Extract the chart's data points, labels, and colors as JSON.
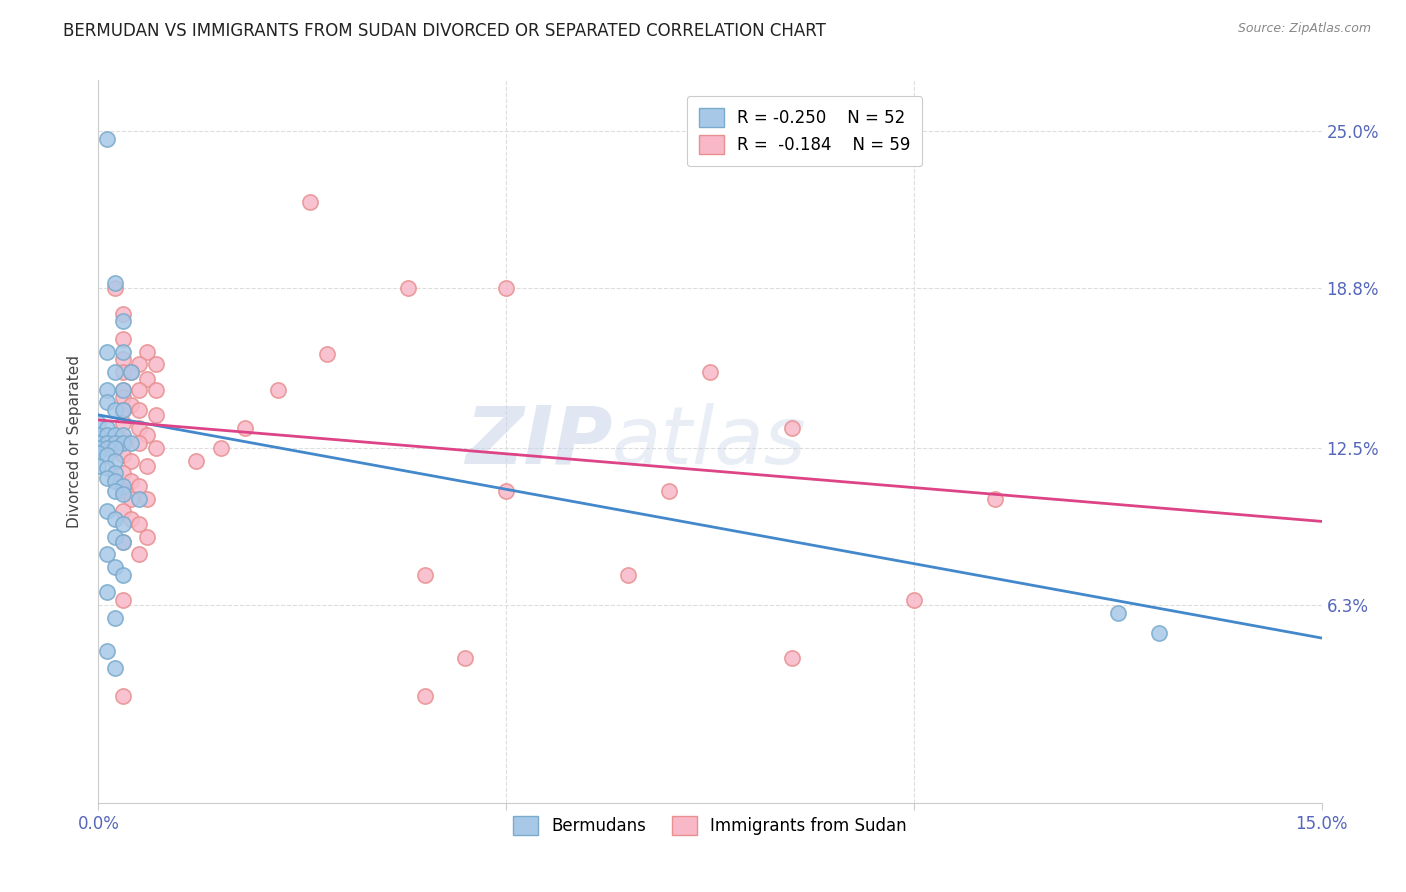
{
  "title": "BERMUDAN VS IMMIGRANTS FROM SUDAN DIVORCED OR SEPARATED CORRELATION CHART",
  "source": "Source: ZipAtlas.com",
  "ylabel": "Divorced or Separated",
  "ytick_labels": [
    "6.3%",
    "12.5%",
    "18.8%",
    "25.0%"
  ],
  "ytick_values": [
    0.063,
    0.125,
    0.188,
    0.25
  ],
  "xmin": 0.0,
  "xmax": 0.15,
  "ymin": -0.015,
  "ymax": 0.27,
  "color_blue": "#a8c8e8",
  "color_pink": "#f8b8c8",
  "color_blue_edge": "#7aaacc",
  "color_pink_edge": "#e89090",
  "watermark_zip": "ZIP",
  "watermark_atlas": "atlas",
  "blue_scatter": [
    [
      0.001,
      0.247
    ],
    [
      0.002,
      0.19
    ],
    [
      0.003,
      0.175
    ],
    [
      0.001,
      0.163
    ],
    [
      0.003,
      0.163
    ],
    [
      0.002,
      0.155
    ],
    [
      0.004,
      0.155
    ],
    [
      0.001,
      0.148
    ],
    [
      0.003,
      0.148
    ],
    [
      0.001,
      0.143
    ],
    [
      0.002,
      0.14
    ],
    [
      0.003,
      0.14
    ],
    [
      0.0,
      0.135
    ],
    [
      0.001,
      0.133
    ],
    [
      0.0,
      0.13
    ],
    [
      0.001,
      0.13
    ],
    [
      0.002,
      0.13
    ],
    [
      0.003,
      0.13
    ],
    [
      0.0,
      0.127
    ],
    [
      0.001,
      0.127
    ],
    [
      0.002,
      0.127
    ],
    [
      0.003,
      0.127
    ],
    [
      0.004,
      0.127
    ],
    [
      0.0,
      0.125
    ],
    [
      0.001,
      0.125
    ],
    [
      0.002,
      0.125
    ],
    [
      0.0,
      0.123
    ],
    [
      0.001,
      0.122
    ],
    [
      0.002,
      0.12
    ],
    [
      0.0,
      0.118
    ],
    [
      0.001,
      0.117
    ],
    [
      0.002,
      0.115
    ],
    [
      0.001,
      0.113
    ],
    [
      0.002,
      0.112
    ],
    [
      0.003,
      0.11
    ],
    [
      0.002,
      0.108
    ],
    [
      0.003,
      0.107
    ],
    [
      0.005,
      0.105
    ],
    [
      0.001,
      0.1
    ],
    [
      0.002,
      0.097
    ],
    [
      0.003,
      0.095
    ],
    [
      0.002,
      0.09
    ],
    [
      0.003,
      0.088
    ],
    [
      0.001,
      0.083
    ],
    [
      0.002,
      0.078
    ],
    [
      0.003,
      0.075
    ],
    [
      0.001,
      0.068
    ],
    [
      0.002,
      0.058
    ],
    [
      0.001,
      0.045
    ],
    [
      0.002,
      0.038
    ],
    [
      0.125,
      0.06
    ],
    [
      0.13,
      0.052
    ]
  ],
  "pink_scatter": [
    [
      0.026,
      0.222
    ],
    [
      0.002,
      0.188
    ],
    [
      0.05,
      0.188
    ],
    [
      0.003,
      0.178
    ],
    [
      0.003,
      0.168
    ],
    [
      0.006,
      0.163
    ],
    [
      0.003,
      0.16
    ],
    [
      0.005,
      0.158
    ],
    [
      0.007,
      0.158
    ],
    [
      0.003,
      0.155
    ],
    [
      0.004,
      0.155
    ],
    [
      0.006,
      0.152
    ],
    [
      0.003,
      0.148
    ],
    [
      0.005,
      0.148
    ],
    [
      0.007,
      0.148
    ],
    [
      0.003,
      0.145
    ],
    [
      0.004,
      0.142
    ],
    [
      0.003,
      0.14
    ],
    [
      0.005,
      0.14
    ],
    [
      0.007,
      0.138
    ],
    [
      0.003,
      0.135
    ],
    [
      0.005,
      0.133
    ],
    [
      0.006,
      0.13
    ],
    [
      0.003,
      0.128
    ],
    [
      0.005,
      0.127
    ],
    [
      0.007,
      0.125
    ],
    [
      0.003,
      0.122
    ],
    [
      0.004,
      0.12
    ],
    [
      0.006,
      0.118
    ],
    [
      0.003,
      0.115
    ],
    [
      0.004,
      0.112
    ],
    [
      0.005,
      0.11
    ],
    [
      0.003,
      0.108
    ],
    [
      0.004,
      0.105
    ],
    [
      0.006,
      0.105
    ],
    [
      0.05,
      0.108
    ],
    [
      0.07,
      0.108
    ],
    [
      0.003,
      0.1
    ],
    [
      0.004,
      0.097
    ],
    [
      0.005,
      0.095
    ],
    [
      0.006,
      0.09
    ],
    [
      0.003,
      0.088
    ],
    [
      0.005,
      0.083
    ],
    [
      0.04,
      0.075
    ],
    [
      0.065,
      0.075
    ],
    [
      0.003,
      0.065
    ],
    [
      0.1,
      0.065
    ],
    [
      0.003,
      0.027
    ],
    [
      0.04,
      0.027
    ],
    [
      0.045,
      0.042
    ],
    [
      0.085,
      0.042
    ],
    [
      0.075,
      0.155
    ],
    [
      0.085,
      0.133
    ],
    [
      0.11,
      0.105
    ],
    [
      0.038,
      0.188
    ],
    [
      0.028,
      0.162
    ],
    [
      0.022,
      0.148
    ],
    [
      0.018,
      0.133
    ],
    [
      0.015,
      0.125
    ],
    [
      0.012,
      0.12
    ]
  ],
  "blue_line_x": [
    0.0,
    0.15
  ],
  "blue_line_y": [
    0.138,
    0.05
  ],
  "pink_line_x": [
    0.0,
    0.15
  ],
  "pink_line_y": [
    0.136,
    0.096
  ]
}
